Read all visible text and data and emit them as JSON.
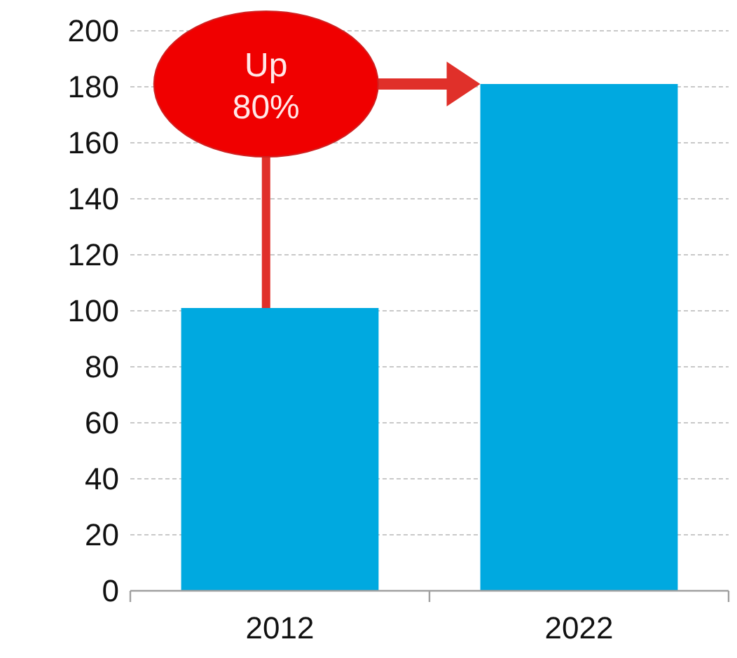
{
  "chart_data": {
    "type": "bar",
    "categories": [
      "2012",
      "2022"
    ],
    "values": [
      101,
      181
    ],
    "color": "#00a9e0",
    "ylim": [
      0,
      200
    ],
    "yticks": [
      0,
      20,
      40,
      60,
      80,
      100,
      120,
      140,
      160,
      180,
      200
    ],
    "grid": "y",
    "annotations": [
      "Up 80%"
    ]
  }
}
